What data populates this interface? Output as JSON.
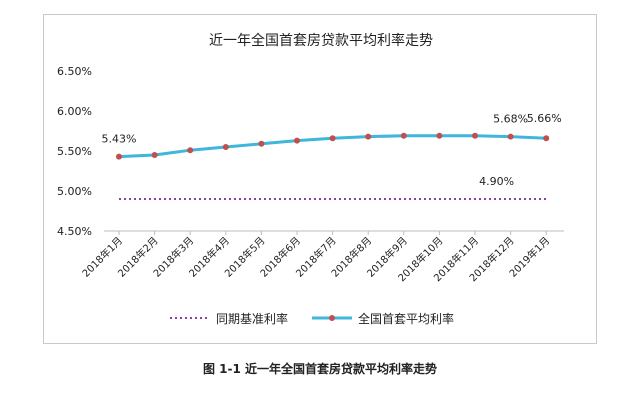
{
  "chart_data": {
    "type": "line",
    "title": "近一年全国首套房贷款平均利率走势",
    "categories": [
      "2018年1月",
      "2018年2月",
      "2018年3月",
      "2018年4月",
      "2018年5月",
      "2018年6月",
      "2018年7月",
      "2018年8月",
      "2018年9月",
      "2018年10月",
      "2018年11月",
      "2018年12月",
      "2019年1月"
    ],
    "y_ticks": [
      "4.50%",
      "5.00%",
      "5.50%",
      "6.00%",
      "6.50%"
    ],
    "ylim": [
      4.5,
      6.5
    ],
    "grid": false,
    "legend_position": "bottom",
    "series": [
      {
        "name": "同期基准利率",
        "style": "dotted",
        "color": "#8a3fa3",
        "values": [
          4.9,
          4.9,
          4.9,
          4.9,
          4.9,
          4.9,
          4.9,
          4.9,
          4.9,
          4.9,
          4.9,
          4.9,
          4.9
        ]
      },
      {
        "name": "全国首套平均利率",
        "style": "solid-markers",
        "color": "#3fb6dc",
        "marker_color": "#c0504d",
        "values": [
          5.43,
          5.45,
          5.51,
          5.55,
          5.59,
          5.63,
          5.66,
          5.68,
          5.69,
          5.69,
          5.69,
          5.68,
          5.66
        ]
      }
    ],
    "annotations": [
      {
        "text": "5.43%"
      },
      {
        "text": "5.68%"
      },
      {
        "text": "5.66%"
      },
      {
        "text": "4.90%"
      }
    ]
  },
  "caption": "图 1-1 近一年全国首套房贷款平均利率走势"
}
